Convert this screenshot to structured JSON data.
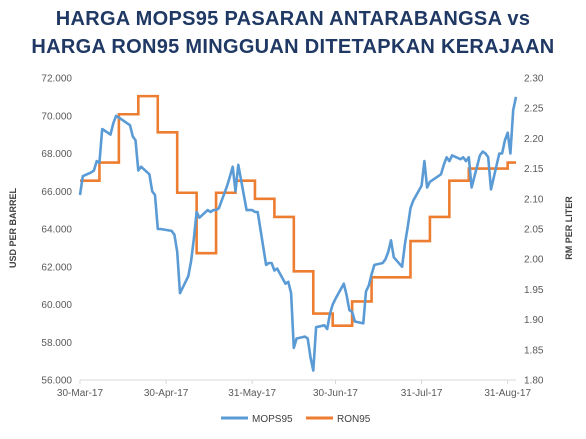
{
  "chart_data": {
    "type": "line",
    "title_line1": "HARGA MOPS95 PASARAN ANTARABANGSA vs",
    "title_line2": "HARGA RON95 MINGGUAN DITETAPKAN KERAJAAN",
    "ylabel_left": "USD PER BARREL",
    "ylabel_right": "RM PER LITER",
    "ylim_left": [
      56.0,
      72.0
    ],
    "ylim_right": [
      1.8,
      2.3
    ],
    "y_ticks_left": [
      "72.000",
      "70.000",
      "68.000",
      "66.000",
      "64.000",
      "62.000",
      "60.000",
      "58.000",
      "56.000"
    ],
    "y_ticks_right": [
      "2.30",
      "2.25",
      "2.20",
      "2.15",
      "2.10",
      "2.05",
      "2.00",
      "1.95",
      "1.90",
      "1.85",
      "1.80"
    ],
    "x_tick_labels": [
      "30-Mar-17",
      "30-Apr-17",
      "31-May-17",
      "30-Jun-17",
      "31-Jul-17",
      "31-Aug-17"
    ],
    "x_tick_dates": [
      "2017-03-30",
      "2017-04-30",
      "2017-05-31",
      "2017-06-30",
      "2017-07-31",
      "2017-08-31"
    ],
    "xlim": [
      "2017-03-30",
      "2017-09-03"
    ],
    "legend_position": "bottom",
    "grid": false,
    "series": [
      {
        "name": "MOPS95",
        "axis": "left",
        "color": "#5b9bd5",
        "points": [
          [
            "2017-03-30",
            65.8
          ],
          [
            "2017-03-31",
            66.8
          ],
          [
            "2017-04-03",
            67.0
          ],
          [
            "2017-04-04",
            67.1
          ],
          [
            "2017-04-05",
            67.6
          ],
          [
            "2017-04-06",
            67.5
          ],
          [
            "2017-04-07",
            69.3
          ],
          [
            "2017-04-10",
            69.0
          ],
          [
            "2017-04-11",
            69.6
          ],
          [
            "2017-04-12",
            70.0
          ],
          [
            "2017-04-13",
            69.9
          ],
          [
            "2017-04-17",
            69.5
          ],
          [
            "2017-04-18",
            68.9
          ],
          [
            "2017-04-19",
            68.7
          ],
          [
            "2017-04-20",
            67.1
          ],
          [
            "2017-04-21",
            67.3
          ],
          [
            "2017-04-24",
            66.9
          ],
          [
            "2017-04-25",
            66.0
          ],
          [
            "2017-04-26",
            65.8
          ],
          [
            "2017-04-27",
            64.0
          ],
          [
            "2017-04-28",
            64.0
          ],
          [
            "2017-05-02",
            63.9
          ],
          [
            "2017-05-03",
            63.7
          ],
          [
            "2017-05-04",
            62.8
          ],
          [
            "2017-05-05",
            60.6
          ],
          [
            "2017-05-08",
            61.5
          ],
          [
            "2017-05-09",
            62.3
          ],
          [
            "2017-05-10",
            63.5
          ],
          [
            "2017-05-11",
            64.9
          ],
          [
            "2017-05-12",
            64.6
          ],
          [
            "2017-05-15",
            65.0
          ],
          [
            "2017-05-16",
            64.9
          ],
          [
            "2017-05-17",
            65.0
          ],
          [
            "2017-05-18",
            65.0
          ],
          [
            "2017-05-19",
            65.1
          ],
          [
            "2017-05-22",
            66.3
          ],
          [
            "2017-05-23",
            66.8
          ],
          [
            "2017-05-24",
            67.3
          ],
          [
            "2017-05-25",
            66.0
          ],
          [
            "2017-05-26",
            67.4
          ],
          [
            "2017-05-29",
            65.0
          ],
          [
            "2017-05-30",
            65.0
          ],
          [
            "2017-05-31",
            65.0
          ],
          [
            "2017-06-01",
            64.9
          ],
          [
            "2017-06-02",
            64.9
          ],
          [
            "2017-06-05",
            62.1
          ],
          [
            "2017-06-06",
            62.2
          ],
          [
            "2017-06-07",
            62.2
          ],
          [
            "2017-06-08",
            61.8
          ],
          [
            "2017-06-09",
            61.9
          ],
          [
            "2017-06-12",
            61.1
          ],
          [
            "2017-06-13",
            61.2
          ],
          [
            "2017-06-14",
            60.6
          ],
          [
            "2017-06-15",
            57.7
          ],
          [
            "2017-06-16",
            58.2
          ],
          [
            "2017-06-19",
            58.3
          ],
          [
            "2017-06-20",
            58.2
          ],
          [
            "2017-06-21",
            57.2
          ],
          [
            "2017-06-22",
            56.5
          ],
          [
            "2017-06-23",
            58.8
          ],
          [
            "2017-06-26",
            58.9
          ],
          [
            "2017-06-27",
            58.7
          ],
          [
            "2017-06-28",
            59.5
          ],
          [
            "2017-06-29",
            60.0
          ],
          [
            "2017-06-30",
            60.3
          ],
          [
            "2017-07-03",
            61.1
          ],
          [
            "2017-07-04",
            60.5
          ],
          [
            "2017-07-05",
            59.7
          ],
          [
            "2017-07-06",
            59.6
          ],
          [
            "2017-07-07",
            59.1
          ],
          [
            "2017-07-10",
            59.0
          ],
          [
            "2017-07-11",
            60.7
          ],
          [
            "2017-07-12",
            61.0
          ],
          [
            "2017-07-13",
            61.6
          ],
          [
            "2017-07-14",
            62.1
          ],
          [
            "2017-07-17",
            62.2
          ],
          [
            "2017-07-18",
            62.4
          ],
          [
            "2017-07-19",
            62.8
          ],
          [
            "2017-07-20",
            63.4
          ],
          [
            "2017-07-21",
            62.5
          ],
          [
            "2017-07-24",
            62.0
          ],
          [
            "2017-07-25",
            63.2
          ],
          [
            "2017-07-26",
            64.1
          ],
          [
            "2017-07-27",
            65.1
          ],
          [
            "2017-07-28",
            65.5
          ],
          [
            "2017-07-31",
            66.3
          ],
          [
            "2017-08-01",
            67.6
          ],
          [
            "2017-08-02",
            66.2
          ],
          [
            "2017-08-03",
            66.5
          ],
          [
            "2017-08-04",
            66.6
          ],
          [
            "2017-08-07",
            66.9
          ],
          [
            "2017-08-08",
            67.4
          ],
          [
            "2017-08-09",
            67.8
          ],
          [
            "2017-08-10",
            67.6
          ],
          [
            "2017-08-11",
            67.9
          ],
          [
            "2017-08-14",
            67.7
          ],
          [
            "2017-08-15",
            67.8
          ],
          [
            "2017-08-16",
            67.6
          ],
          [
            "2017-08-17",
            67.8
          ],
          [
            "2017-08-18",
            66.2
          ],
          [
            "2017-08-21",
            67.9
          ],
          [
            "2017-08-22",
            68.1
          ],
          [
            "2017-08-23",
            68.0
          ],
          [
            "2017-08-24",
            67.8
          ],
          [
            "2017-08-25",
            66.1
          ],
          [
            "2017-08-28",
            68.0
          ],
          [
            "2017-08-29",
            68.0
          ],
          [
            "2017-08-30",
            68.7
          ],
          [
            "2017-08-31",
            69.1
          ],
          [
            "2017-09-01",
            68.0
          ],
          [
            "2017-09-02",
            70.3
          ],
          [
            "2017-09-03",
            71.0
          ]
        ]
      },
      {
        "name": "RON95",
        "axis": "right",
        "color": "#ed7d31",
        "steps": [
          [
            "2017-03-30",
            2.13
          ],
          [
            "2017-04-06",
            2.16
          ],
          [
            "2017-04-13",
            2.24
          ],
          [
            "2017-04-20",
            2.27
          ],
          [
            "2017-04-27",
            2.21
          ],
          [
            "2017-05-04",
            2.11
          ],
          [
            "2017-05-11",
            2.01
          ],
          [
            "2017-05-18",
            2.11
          ],
          [
            "2017-05-25",
            2.13
          ],
          [
            "2017-06-01",
            2.1
          ],
          [
            "2017-06-08",
            2.07
          ],
          [
            "2017-06-15",
            1.98
          ],
          [
            "2017-06-22",
            1.91
          ],
          [
            "2017-06-29",
            1.89
          ],
          [
            "2017-07-06",
            1.93
          ],
          [
            "2017-07-13",
            1.97
          ],
          [
            "2017-07-20",
            1.97
          ],
          [
            "2017-07-27",
            2.03
          ],
          [
            "2017-08-03",
            2.07
          ],
          [
            "2017-08-10",
            2.13
          ],
          [
            "2017-08-17",
            2.15
          ],
          [
            "2017-08-24",
            2.15
          ],
          [
            "2017-08-31",
            2.16
          ]
        ],
        "end_date": "2017-09-03"
      }
    ]
  }
}
